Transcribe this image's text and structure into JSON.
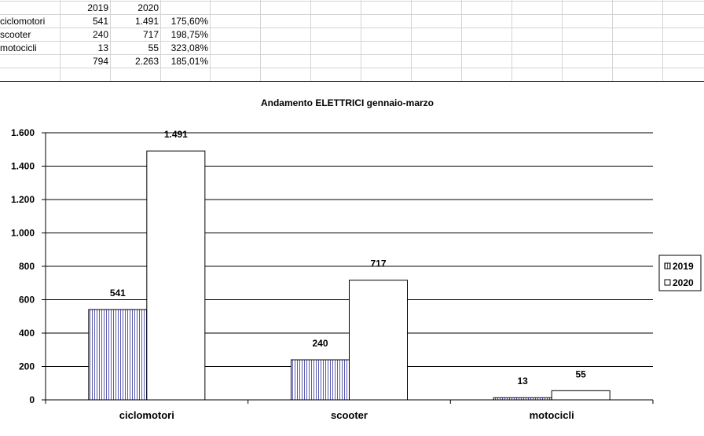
{
  "sheet": {
    "header": [
      "",
      "2019",
      "2020",
      ""
    ],
    "rows": [
      [
        "ciclomotori",
        "541",
        "1.491",
        "175,60%"
      ],
      [
        "scooter",
        "240",
        "717",
        "198,75%"
      ],
      [
        "motocicli",
        "13",
        "55",
        "323,08%"
      ],
      [
        "",
        "794",
        "2.263",
        "185,01%"
      ]
    ]
  },
  "chart_data": {
    "type": "bar",
    "title": "Andamento ELETTRICI gennaio-marzo",
    "categories": [
      "ciclomotori",
      "scooter",
      "motocicli"
    ],
    "series": [
      {
        "name": "2019",
        "values": [
          541,
          240,
          13
        ],
        "labels": [
          "541",
          "240",
          "13"
        ],
        "pattern": "vertical-stripes",
        "color": "#5b5bb0"
      },
      {
        "name": "2020",
        "values": [
          1491,
          717,
          55
        ],
        "labels": [
          "1.491",
          "717",
          "55"
        ],
        "pattern": "solid",
        "color": "#ffffff"
      }
    ],
    "ylim": [
      0,
      1600
    ],
    "yticks": [
      0,
      200,
      400,
      600,
      800,
      1000,
      1200,
      1400,
      1600
    ],
    "ytick_labels": [
      "0",
      "200",
      "400",
      "600",
      "800",
      "1.000",
      "1.200",
      "1.400",
      "1.600"
    ],
    "grid": true,
    "legend_position": "right"
  }
}
